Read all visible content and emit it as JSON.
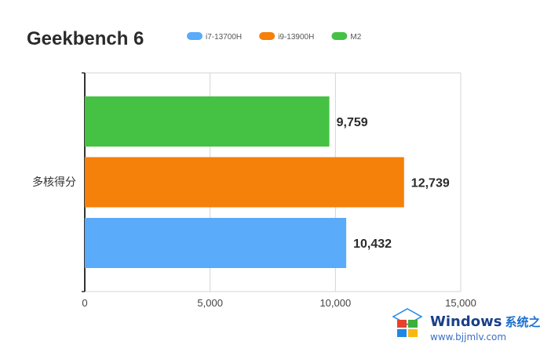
{
  "chart_data": {
    "type": "bar",
    "orientation": "horizontal",
    "title": "Geekbench 6",
    "categories": [
      "多核得分"
    ],
    "series": [
      {
        "name": "i7-13700H",
        "values": [
          10432
        ],
        "color": "#5aabf9"
      },
      {
        "name": "i9-13900H",
        "values": [
          12739
        ],
        "color": "#f5800a"
      },
      {
        "name": "M2",
        "values": [
          9759
        ],
        "color": "#45c244"
      }
    ],
    "xlim": [
      0,
      15000
    ],
    "xticks": [
      "0",
      "5,000",
      "10,000",
      "15,000"
    ],
    "xtick_values": [
      0,
      5000,
      10000,
      15000
    ],
    "data_labels": [
      "10,432",
      "12,739",
      "9,759"
    ],
    "xlabel": "",
    "ylabel": "",
    "legend_position": "top",
    "grid": "vertical"
  },
  "watermark": {
    "brand": "Windows",
    "brand_cn": "系统之家",
    "url": "www.bjjmlv.com",
    "logo_colors": [
      "#e8412c",
      "#3cae3a",
      "#1e88e5",
      "#f7b90f"
    ]
  }
}
